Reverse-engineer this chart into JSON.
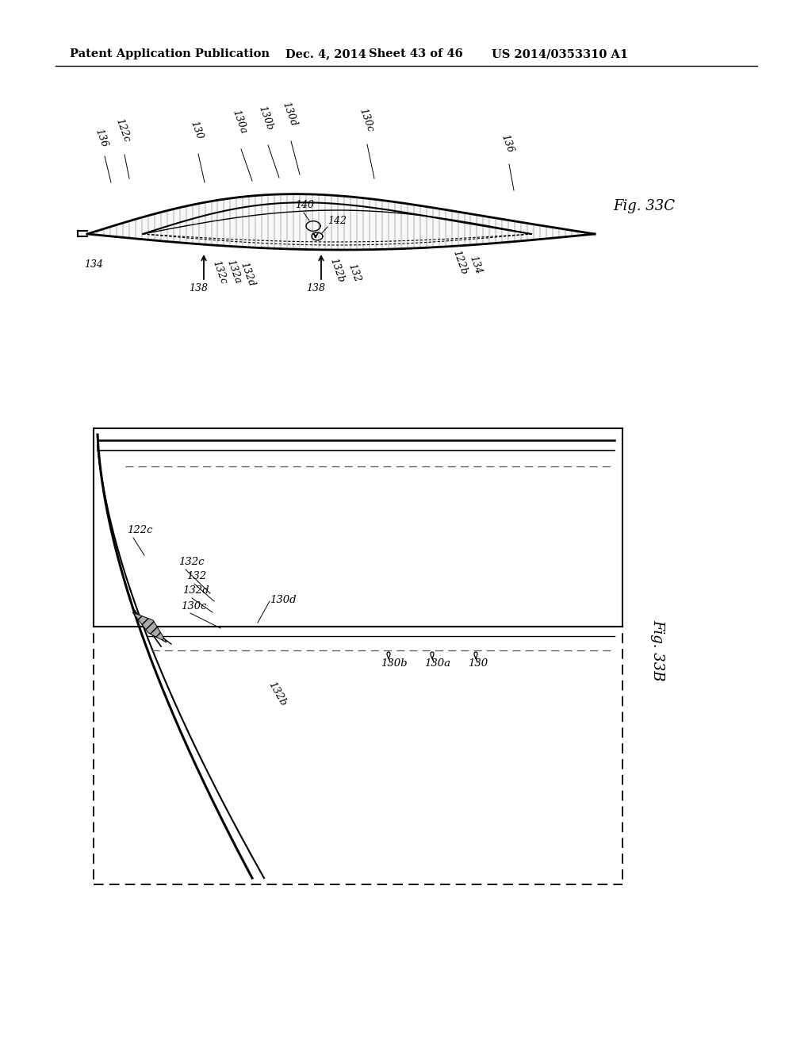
{
  "title": "Patent Application Publication",
  "date": "Dec. 4, 2014",
  "sheet": "Sheet 43 of 46",
  "patent": "US 2014/0353310 A1",
  "fig33c_label": "Fig. 33C",
  "fig33b_label": "Fig. 33B",
  "bg_color": "#ffffff",
  "line_color": "#000000",
  "header_fontsize": 10.5,
  "label_fontsize": 9
}
